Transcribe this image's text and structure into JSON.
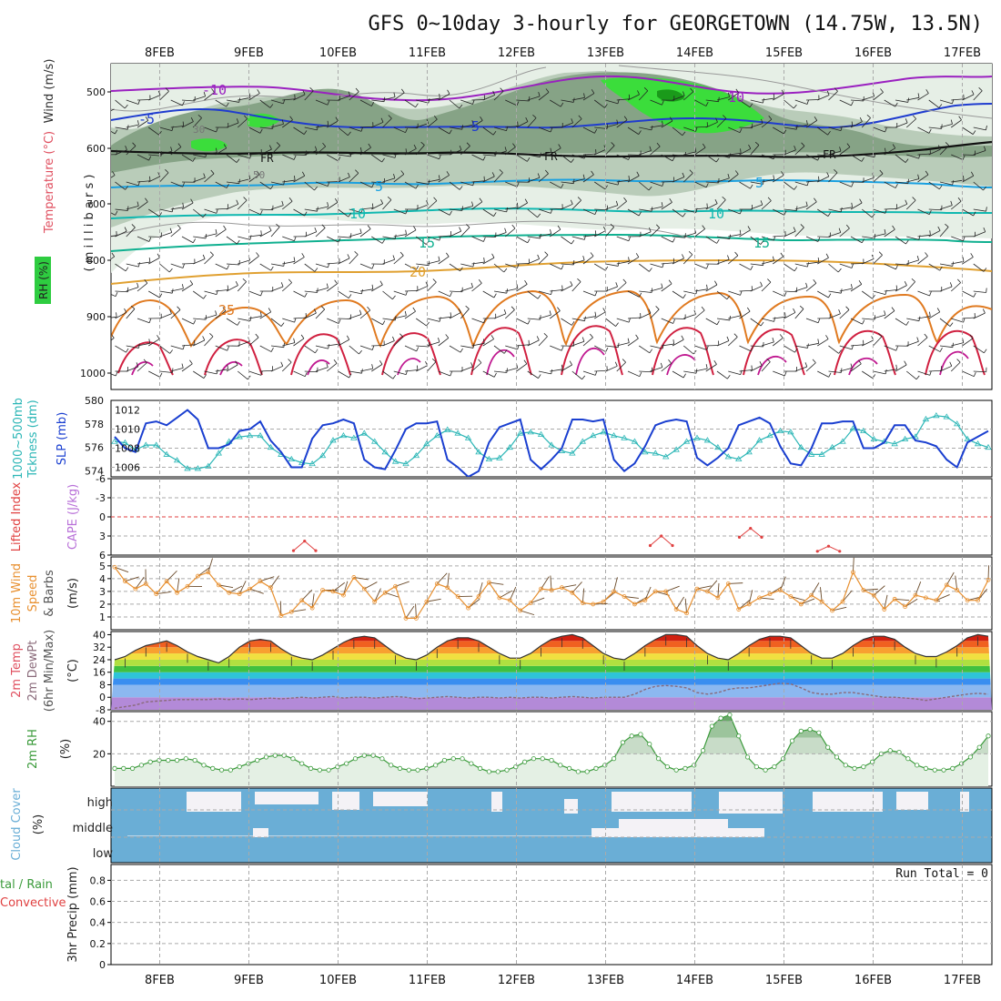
{
  "header": {
    "title": "GFS 0~10day 3-hourly for GEORGETOWN (14.75W, 13.5N)"
  },
  "dates": [
    "8FEB",
    "9FEB",
    "10FEB",
    "11FEB",
    "12FEB",
    "13FEB",
    "14FEB",
    "15FEB",
    "16FEB",
    "17FEB"
  ],
  "colors": {
    "grid": "#aaaaaa",
    "rh_fill_light": "#e6efe6",
    "rh_fill_mid": "#b9ccb9",
    "rh_fill_dark": "#86a386",
    "rh_high": "#2ee82e",
    "slp": "#1a3fd0",
    "thickness": "#2bb6b6",
    "lifted_index": "#e04040",
    "cape": "#b870d8",
    "wind_speed": "#e89030",
    "barb": "#333333",
    "rh2m": "#3a9a3a",
    "cloud_blue": "#6aaed6",
    "cloud_white": "#f4f2f6",
    "dewpoint": "#8a6a7a"
  },
  "panels": {
    "upper": {
      "ylabel_a": "Wind (m/s)",
      "ylabel_b": "Temperature (°C)",
      "ylabel_c": "RH (%)",
      "ylabel_d": "( m i l l i b a r s )",
      "levels": [
        "500",
        "600",
        "700",
        "800",
        "900",
        "1000"
      ],
      "contour_labels": [
        "-10",
        "-5",
        "5",
        "10",
        "15",
        "20",
        "25",
        "FR",
        "FR",
        "FR",
        "10",
        "5",
        "5",
        "10",
        "15",
        "30",
        "50"
      ]
    },
    "slp": {
      "ylabel_a": "1000~500mb",
      "ylabel_b": "Tckness (dm)",
      "ylabel_c": "SLP (mb)",
      "left_ticks": [
        "580",
        "578",
        "576",
        "574"
      ],
      "right_ticks": [
        "1012",
        "1010",
        "1008",
        "1006"
      ]
    },
    "li": {
      "ylabel_a": "Lifted Index",
      "ylabel_b": "CAPE (J/kg)",
      "ticks": [
        "-6",
        "-3",
        "0",
        "3",
        "6"
      ]
    },
    "wind": {
      "ylabel_a": "10m Wind",
      "ylabel_b": "Speed",
      "ylabel_c": "& Barbs",
      "ylabel_d": "(m/s)",
      "ticks": [
        "5",
        "4",
        "3",
        "2",
        "1"
      ]
    },
    "temp": {
      "ylabel_a": "2m Temp",
      "ylabel_b": "2m DewPt",
      "ylabel_c": "(6hr Min/Max)",
      "ylabel_d": "(°C)",
      "ticks": [
        "40",
        "32",
        "24",
        "16",
        "8",
        "0",
        "-8"
      ]
    },
    "rh": {
      "ylabel_a": "2m RH",
      "ylabel_b": "(%)",
      "ticks": [
        "40",
        "20"
      ]
    },
    "cloud": {
      "ylabel_a": "Cloud Cover",
      "ylabel_b": "(%)",
      "levels": [
        "high",
        "middle",
        "low"
      ]
    },
    "precip": {
      "ylabel_a": "tal / Rain",
      "ylabel_b": "Convective",
      "ylabel_c": "3hr Precip (mm)",
      "ticks": [
        "0.8",
        "0.6",
        "0.4",
        "0.2",
        "0"
      ],
      "run_total": "Run Total = 0"
    }
  },
  "chart_data": [
    {
      "type": "line",
      "title": "1000~500mb Thickness (dm) / SLP (mb)",
      "series": [
        {
          "name": "SLP (mb)",
          "y_axis": "right",
          "values": [
            1009.2,
            1008,
            1007.6,
            1010.6,
            1010.8,
            1010.4,
            1011.2,
            1012,
            1011,
            1008,
            1008,
            1008.4,
            1009.8,
            1010,
            1010.8,
            1008.8,
            1007.6,
            1006,
            1006,
            1009,
            1010.4,
            1010.6,
            1011,
            1010.6,
            1006.8,
            1006,
            1005.8,
            1007.8,
            1010,
            1010.6,
            1010.6,
            1010.8,
            1006.8,
            1006,
            1005,
            1005.6,
            1008.6,
            1010.2,
            1010.6,
            1011,
            1006.8,
            1005.8,
            1006.8,
            1008,
            1011,
            1011,
            1010.8,
            1011,
            1006.8,
            1005.6,
            1006.4,
            1008.2,
            1010.4,
            1010.8,
            1011,
            1010.8,
            1007,
            1006.2,
            1007,
            1008,
            1010.4,
            1010.8,
            1011.2,
            1010.6,
            1008.2,
            1006.4,
            1006.2,
            1008,
            1010.6,
            1010.6,
            1010.8,
            1010.8,
            1008,
            1008,
            1008.6,
            1010.4,
            1010.4,
            1008.8,
            1008.6,
            1008.2,
            1006.8,
            1006,
            1008.6,
            1009.2,
            1009.8
          ]
        },
        {
          "name": "1000~500mb Thickness (dm)",
          "y_axis": "left",
          "values": [
            576.5,
            576.4,
            575.8,
            576.2,
            576.2,
            575.4,
            574.9,
            574.2,
            574.2,
            574.4,
            575.5,
            576.5,
            576.9,
            577,
            577,
            576,
            575.4,
            575,
            574.7,
            574.6,
            575.3,
            576.6,
            577,
            576.8,
            577.2,
            576.5,
            575.6,
            574.8,
            574.6,
            575.3,
            576.3,
            577,
            577.5,
            577.2,
            576.8,
            575.6,
            575,
            575.1,
            576,
            577.2,
            577.3,
            577.1,
            576.2,
            575.7,
            575.5,
            576.5,
            577,
            577.3,
            577,
            576.8,
            576.5,
            575.6,
            575.5,
            575.2,
            575.8,
            576.5,
            576.8,
            576.6,
            576,
            575.2,
            575,
            575.6,
            576.6,
            577,
            577.4,
            577.3,
            576,
            575.4,
            575.4,
            576,
            576.5,
            577.6,
            577.4,
            576.7,
            576.5,
            576.3,
            576.7,
            576.9,
            578.4,
            578.7,
            578.6,
            578,
            576.7,
            576.3,
            576
          ]
        }
      ],
      "left_range": [
        573.5,
        580
      ],
      "right_range": [
        1005,
        1013
      ]
    },
    {
      "type": "line",
      "title": "Lifted Index",
      "x_unit": "hours from 8FEB 00Z",
      "segments": [
        {
          "x": [
            48,
            51,
            54
          ],
          "values": [
            5.3,
            3.8,
            5.3
          ]
        },
        {
          "x": [
            144,
            147,
            150
          ],
          "values": [
            4.5,
            3,
            4.5
          ]
        },
        {
          "x": [
            168,
            171,
            174
          ],
          "values": [
            3.2,
            1.8,
            3.2
          ]
        },
        {
          "x": [
            189,
            192,
            195
          ],
          "values": [
            5.4,
            4.6,
            5.4
          ]
        }
      ],
      "ylim": [
        -6,
        6
      ]
    },
    {
      "type": "line",
      "title": "10m Wind Speed (m/s)",
      "values": [
        4.9,
        3.8,
        3.2,
        3.6,
        2.8,
        3.8,
        2.9,
        3.4,
        4.2,
        4.5,
        3.5,
        2.9,
        2.8,
        3.2,
        3.8,
        3.3,
        1.1,
        1.4,
        2.3,
        1.7,
        3.1,
        3,
        2.7,
        4.1,
        3.2,
        2.2,
        2.9,
        3.4,
        0.9,
        0.9,
        2.2,
        3.6,
        3.3,
        2.6,
        1.7,
        2.6,
        3.7,
        2.5,
        2.3,
        1.5,
        2.1,
        3.2,
        3.1,
        3.3,
        2.9,
        2.1,
        2,
        2.2,
        3,
        2.6,
        2,
        2.3,
        3,
        3,
        1.6,
        1.3,
        3.2,
        3,
        2.5,
        3.6,
        1.6,
        2,
        2.5,
        2.8,
        3.1,
        2.6,
        2,
        2.7,
        2.2,
        1.5,
        2.2,
        4.5,
        3.1,
        2.7,
        1.6,
        2.4,
        1.8,
        2.7,
        2.5,
        2.3,
        3.5,
        3.1,
        2.3,
        2.3,
        3.9
      ],
      "ylim": [
        0,
        5.5
      ]
    },
    {
      "type": "area",
      "title": "2m Temp / 2m DewPt (6hr Min/Max) (°C)",
      "series": [
        {
          "name": "2m Temp",
          "values": [
            24,
            26,
            30,
            33,
            34.5,
            36,
            33,
            29,
            26,
            24,
            22,
            26,
            32,
            36,
            37,
            36,
            31,
            27,
            25,
            24,
            27,
            31,
            35,
            38,
            39,
            38,
            33,
            28,
            25,
            24,
            27,
            32,
            36,
            38,
            38,
            36,
            32,
            28,
            25,
            25,
            28,
            33,
            37,
            39,
            40,
            38,
            33,
            28,
            25,
            24,
            28,
            33,
            37,
            40,
            40,
            39,
            33,
            28,
            25,
            24,
            28,
            33,
            37,
            39,
            39,
            38,
            33,
            28,
            25,
            25,
            28,
            33,
            37,
            39,
            39,
            37,
            32,
            28,
            26,
            26,
            29,
            33,
            38,
            40,
            39
          ]
        },
        {
          "name": "2m DewPt",
          "values": [
            -7,
            -6,
            -5,
            -3,
            -2.5,
            -2,
            -1.5,
            -1.5,
            -1.5,
            -1.5,
            -1,
            -1.5,
            -1,
            -1.5,
            -1,
            -0.5,
            -1,
            -0.5,
            0,
            -0.5,
            0,
            0.5,
            -0.5,
            0,
            0,
            -0.5,
            0,
            0.5,
            0,
            -1,
            -0.5,
            0,
            0.5,
            0,
            -0.5,
            0,
            0,
            -0.5,
            0,
            -0.5,
            0,
            0,
            -0.5,
            0,
            0.5,
            0,
            -0.5,
            0,
            0,
            0,
            2,
            5,
            7,
            7.5,
            7,
            6,
            3,
            2,
            3,
            5,
            6,
            6,
            7,
            8,
            9,
            8.5,
            6,
            3,
            2,
            2,
            3,
            3,
            2,
            1,
            0,
            0,
            -0.5,
            -1,
            -2,
            -1,
            0,
            1,
            2,
            2.5,
            2
          ]
        }
      ],
      "ylim": [
        -8,
        42
      ]
    },
    {
      "type": "area",
      "title": "2m RH (%)",
      "values": [
        11,
        11,
        11,
        13,
        15,
        16,
        16,
        16,
        17,
        16,
        13,
        11,
        10,
        10,
        12,
        14,
        16,
        18,
        19,
        19,
        17,
        14,
        11,
        10,
        10,
        12,
        14,
        17,
        19,
        19,
        17,
        13,
        11,
        10,
        10,
        11,
        13,
        16,
        17,
        17,
        14,
        11,
        9,
        9,
        10,
        12,
        15,
        17,
        17,
        16,
        13,
        11,
        9,
        9,
        11,
        13,
        17,
        27,
        31,
        32,
        26,
        17,
        12,
        10,
        11,
        13,
        22,
        37,
        42,
        44,
        31,
        18,
        12,
        10,
        12,
        17,
        28,
        34,
        35,
        33,
        24,
        18,
        13,
        11,
        12,
        15,
        20,
        22,
        21,
        17,
        13,
        11,
        10,
        10,
        11,
        14,
        18,
        24,
        31
      ],
      "ylim": [
        0,
        45
      ]
    },
    {
      "type": "table",
      "title": "3hr Precip (mm)",
      "run_total": 0,
      "ylim": [
        0,
        1
      ]
    }
  ]
}
